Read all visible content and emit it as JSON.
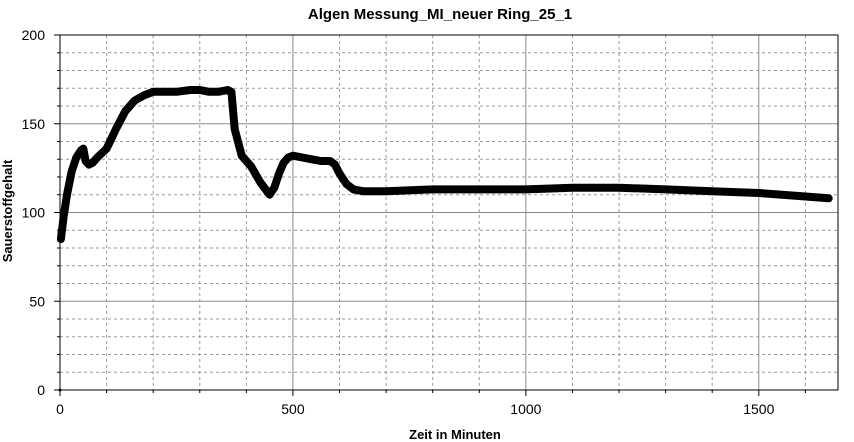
{
  "chart_data": {
    "type": "line",
    "title": "Algen Messung_MI_neuer Ring_25_1",
    "xlabel": "Zeit in Minuten",
    "ylabel": "Sauerstoffgehalt",
    "xlim": [
      0,
      1670
    ],
    "ylim": [
      0,
      200
    ],
    "x_ticks": [
      0,
      500,
      1000,
      1500
    ],
    "x_tick_labels": [
      "0",
      "500",
      "1000",
      "1500"
    ],
    "y_ticks": [
      0,
      50,
      100,
      150,
      200
    ],
    "y_tick_labels": [
      "0",
      "50",
      "100",
      "150",
      "200"
    ],
    "grid": true,
    "legend": "none",
    "series": [
      {
        "color": "#000000",
        "x": [
          2,
          8,
          15,
          25,
          35,
          45,
          50,
          55,
          62,
          70,
          80,
          100,
          120,
          140,
          160,
          180,
          200,
          220,
          250,
          280,
          300,
          320,
          340,
          360,
          368,
          375,
          390,
          410,
          430,
          450,
          460,
          470,
          480,
          490,
          500,
          520,
          540,
          560,
          580,
          590,
          600,
          615,
          630,
          650,
          700,
          800,
          900,
          1000,
          1100,
          1150,
          1200,
          1300,
          1400,
          1500,
          1550,
          1600,
          1650
        ],
        "y": [
          85,
          98,
          110,
          123,
          131,
          135,
          136,
          129,
          127,
          128,
          131,
          136,
          147,
          157,
          163,
          166,
          168,
          168,
          168,
          169,
          169,
          168,
          168,
          169,
          168,
          147,
          132,
          126,
          117,
          110,
          114,
          122,
          128,
          131,
          132,
          131,
          130,
          129,
          129,
          127,
          122,
          116,
          113,
          112,
          112,
          113,
          113,
          113,
          114,
          114,
          114,
          113,
          112,
          111,
          110,
          109,
          108
        ]
      }
    ]
  }
}
